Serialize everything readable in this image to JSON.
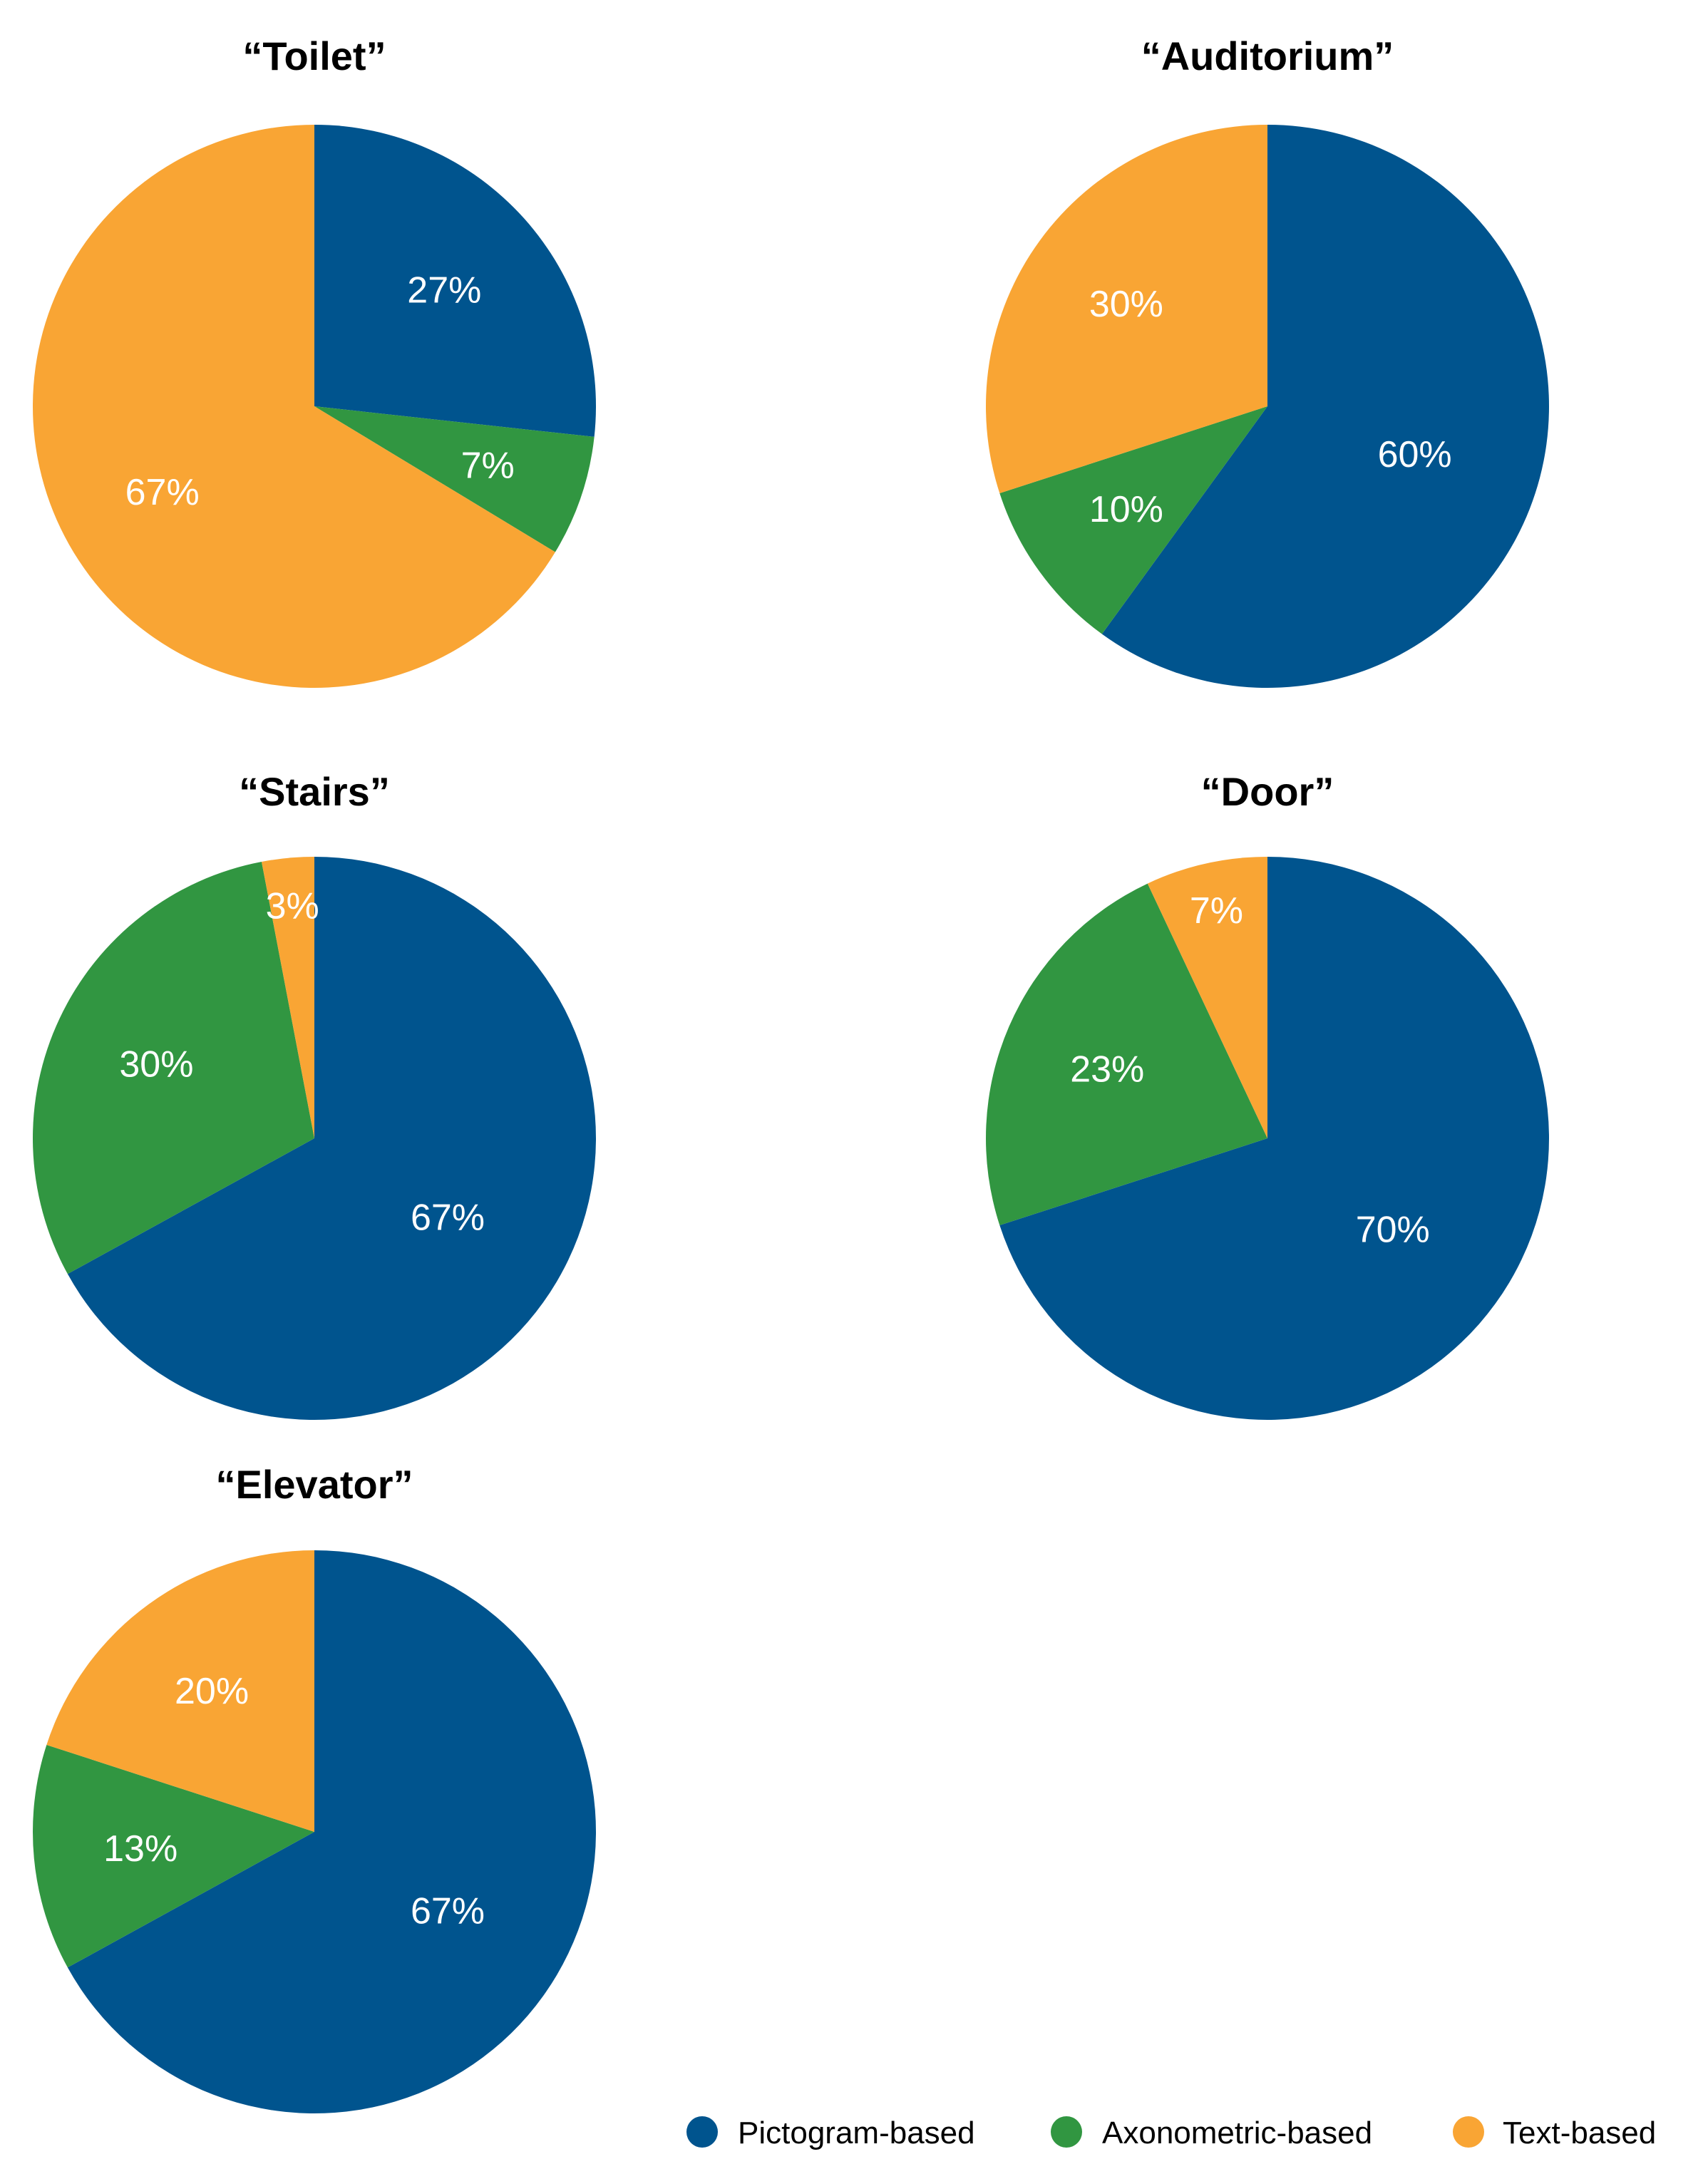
{
  "chart_data": [
    {
      "type": "pie",
      "title": "“Toilet”",
      "slices": [
        {
          "category": "Pictogram-based",
          "value": 27,
          "label": "27%"
        },
        {
          "category": "Axonometric-based",
          "value": 7,
          "label": "7%"
        },
        {
          "category": "Text-based",
          "value": 67,
          "label": "67%"
        }
      ]
    },
    {
      "type": "pie",
      "title": "“Auditorium”",
      "slices": [
        {
          "category": "Pictogram-based",
          "value": 60,
          "label": "60%"
        },
        {
          "category": "Axonometric-based",
          "value": 10,
          "label": "10%"
        },
        {
          "category": "Text-based",
          "value": 30,
          "label": "30%"
        }
      ]
    },
    {
      "type": "pie",
      "title": "“Stairs”",
      "slices": [
        {
          "category": "Pictogram-based",
          "value": 67,
          "label": "67%"
        },
        {
          "category": "Axonometric-based",
          "value": 30,
          "label": "30%"
        },
        {
          "category": "Text-based",
          "value": 3,
          "label": "3%"
        }
      ]
    },
    {
      "type": "pie",
      "title": "“Door”",
      "slices": [
        {
          "category": "Pictogram-based",
          "value": 70,
          "label": "70%"
        },
        {
          "category": "Axonometric-based",
          "value": 23,
          "label": "23%"
        },
        {
          "category": "Text-based",
          "value": 7,
          "label": "7%"
        }
      ]
    },
    {
      "type": "pie",
      "title": "“Elevator”",
      "slices": [
        {
          "category": "Pictogram-based",
          "value": 67,
          "label": "67%"
        },
        {
          "category": "Axonometric-based",
          "value": 13,
          "label": "13%"
        },
        {
          "category": "Text-based",
          "value": 20,
          "label": "20%"
        }
      ]
    }
  ],
  "legend": {
    "placement": "bottom-right",
    "items": [
      {
        "label": "Pictogram-based",
        "color": "#00548E"
      },
      {
        "label": "Axonometric-based",
        "color": "#319641"
      },
      {
        "label": "Text-based",
        "color": "#F9A534"
      }
    ]
  }
}
